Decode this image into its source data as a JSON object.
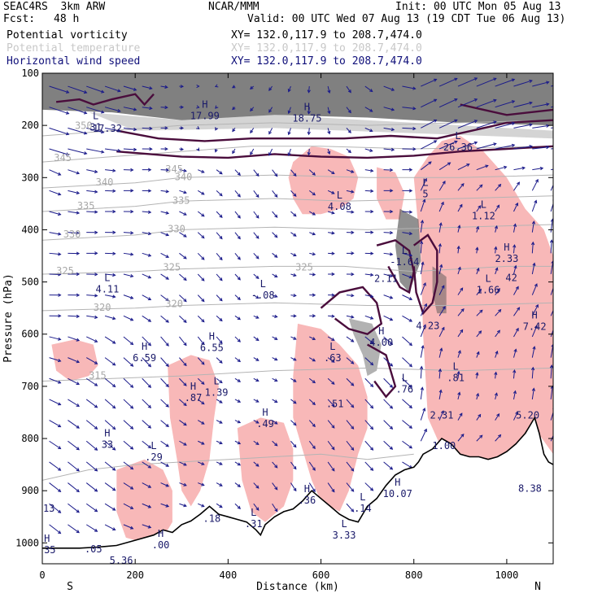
{
  "header": {
    "model": "SEAC4RS  3km ARW",
    "org": "NCAR/MMM",
    "init": "Init: 00 UTC Mon 05 Aug 13",
    "fcst_label": "Fcst:",
    "fcst_value": "48 h",
    "valid": "Valid: 00 UTC Wed 07 Aug 13 (19 CDT Tue 06 Aug 13)"
  },
  "fields": [
    {
      "name": "Potential vorticity",
      "xy": "XY= 132.0,117.9 to 208.7,474.0",
      "color": "#000000"
    },
    {
      "name": "Potential temperature",
      "xy": "XY= 132.0,117.9 to 208.7,474.0",
      "color": "#c8c8c8"
    },
    {
      "name": "Horizontal wind speed",
      "xy": "XY= 132.0,117.9 to 208.7,474.0",
      "color": "#10107a"
    }
  ],
  "colors": {
    "pv_contour": "#4a0d3c",
    "theta_contour": "#b4b4b4",
    "wind_vector": "#1a1a8a",
    "shading_positive": "#f8b8b8",
    "shading_high_pv": "#555555",
    "terrain": "#000000"
  },
  "chart_data": {
    "type": "cross-section",
    "xlabel": "Distance (km)",
    "ylabel": "Pressure (hPa)",
    "xlim": [
      0,
      1100
    ],
    "ylim": [
      1040,
      100
    ],
    "y_scale": "reversed",
    "x_ticks": [
      "0",
      "200",
      "400",
      "600",
      "800",
      "1000"
    ],
    "x_tick_values": [
      0,
      200,
      400,
      600,
      800,
      1000
    ],
    "y_ticks": [
      "100",
      "200",
      "300",
      "400",
      "500",
      "600",
      "700",
      "800",
      "900",
      "1000"
    ],
    "y_tick_values": [
      100,
      200,
      300,
      400,
      500,
      600,
      700,
      800,
      900,
      1000
    ],
    "end_labels": {
      "left": "S",
      "right": "N"
    },
    "theta_labels": [
      {
        "text": "350",
        "x": 70,
        "p": 207
      },
      {
        "text": "345",
        "x": 25,
        "p": 268
      },
      {
        "text": "345",
        "x": 265,
        "p": 290
      },
      {
        "text": "340",
        "x": 115,
        "p": 315
      },
      {
        "text": "340",
        "x": 285,
        "p": 305
      },
      {
        "text": "335",
        "x": 75,
        "p": 360
      },
      {
        "text": "335",
        "x": 280,
        "p": 350
      },
      {
        "text": "330",
        "x": 45,
        "p": 415
      },
      {
        "text": "330",
        "x": 270,
        "p": 405
      },
      {
        "text": "325",
        "x": 30,
        "p": 485
      },
      {
        "text": "325",
        "x": 260,
        "p": 478
      },
      {
        "text": "325",
        "x": 545,
        "p": 478
      },
      {
        "text": "320",
        "x": 110,
        "p": 555
      },
      {
        "text": "320",
        "x": 265,
        "p": 548
      },
      {
        "text": "315",
        "x": 100,
        "p": 685
      }
    ],
    "extrema": [
      {
        "type": "L",
        "value": "31",
        "x": 115,
        "p": 210
      },
      {
        "type": "",
        "value": "17.32",
        "x": 140,
        "p": 212
      },
      {
        "type": "H",
        "value": "17.99",
        "x": 350,
        "p": 188
      },
      {
        "type": "H",
        "value": "18.75",
        "x": 570,
        "p": 193
      },
      {
        "type": "L",
        "value": "26.36",
        "x": 895,
        "p": 248
      },
      {
        "type": "L",
        "value": "4.08",
        "x": 640,
        "p": 362
      },
      {
        "type": "L",
        "value": "5",
        "x": 825,
        "p": 338
      },
      {
        "type": "L",
        "value": "1.12",
        "x": 950,
        "p": 380
      },
      {
        "type": "L",
        "value": "4.11",
        "x": 140,
        "p": 520
      },
      {
        "type": "L",
        "value": "-.08",
        "x": 475,
        "p": 532
      },
      {
        "type": "L",
        "value": "-1.64",
        "x": 780,
        "p": 468
      },
      {
        "type": "",
        "value": "2.11",
        "x": 740,
        "p": 500
      },
      {
        "type": "H",
        "value": "2.33",
        "x": 1000,
        "p": 462
      },
      {
        "type": "",
        "value": "42",
        "x": 1010,
        "p": 498
      },
      {
        "type": "L",
        "value": "1.66",
        "x": 960,
        "p": 522
      },
      {
        "type": "",
        "value": "4.23",
        "x": 830,
        "p": 590
      },
      {
        "type": "H",
        "value": "4.00",
        "x": 730,
        "p": 622
      },
      {
        "type": "H",
        "value": "7.42",
        "x": 1060,
        "p": 592
      },
      {
        "type": "H",
        "value": "6.59",
        "x": 220,
        "p": 652
      },
      {
        "type": "H",
        "value": "6.55",
        "x": 365,
        "p": 632
      },
      {
        "type": "L",
        "value": ".63",
        "x": 625,
        "p": 652
      },
      {
        "type": "L",
        "value": ".81",
        "x": 890,
        "p": 690
      },
      {
        "type": "H",
        "value": ".87",
        "x": 325,
        "p": 728
      },
      {
        "type": "L",
        "value": "1.39",
        "x": 375,
        "p": 718
      },
      {
        "type": "L",
        "value": ".76",
        "x": 780,
        "p": 712
      },
      {
        "type": "",
        "value": ".51",
        "x": 630,
        "p": 740
      },
      {
        "type": "",
        "value": "2.31",
        "x": 860,
        "p": 762
      },
      {
        "type": "H",
        "value": ".49",
        "x": 480,
        "p": 778
      },
      {
        "type": "",
        "value": "5.20",
        "x": 1045,
        "p": 762
      },
      {
        "type": "H",
        "value": "33",
        "x": 140,
        "p": 818
      },
      {
        "type": "L",
        "value": ".29",
        "x": 240,
        "p": 842
      },
      {
        "type": "",
        "value": "1.00",
        "x": 865,
        "p": 820
      },
      {
        "type": "H",
        "value": "10.07",
        "x": 765,
        "p": 912
      },
      {
        "type": "",
        "value": "8.38",
        "x": 1050,
        "p": 902
      },
      {
        "type": "H",
        "value": ".36",
        "x": 570,
        "p": 925
      },
      {
        "type": "L",
        "value": ".14",
        "x": 690,
        "p": 940
      },
      {
        "type": "",
        "value": ".18",
        "x": 365,
        "p": 960
      },
      {
        "type": "L",
        "value": ".31",
        "x": 455,
        "p": 970
      },
      {
        "type": "L",
        "value": "3.33",
        "x": 650,
        "p": 992
      },
      {
        "type": "",
        "value": ".13",
        "x": 8,
        "p": 940
      },
      {
        "type": "H",
        "value": ".35",
        "x": 10,
        "p": 1020
      },
      {
        "type": "",
        "value": ".05",
        "x": 110,
        "p": 1018
      },
      {
        "type": "",
        "value": "5.36",
        "x": 170,
        "p": 1040
      },
      {
        "type": "H",
        "value": ".00",
        "x": 255,
        "p": 1010
      }
    ]
  }
}
